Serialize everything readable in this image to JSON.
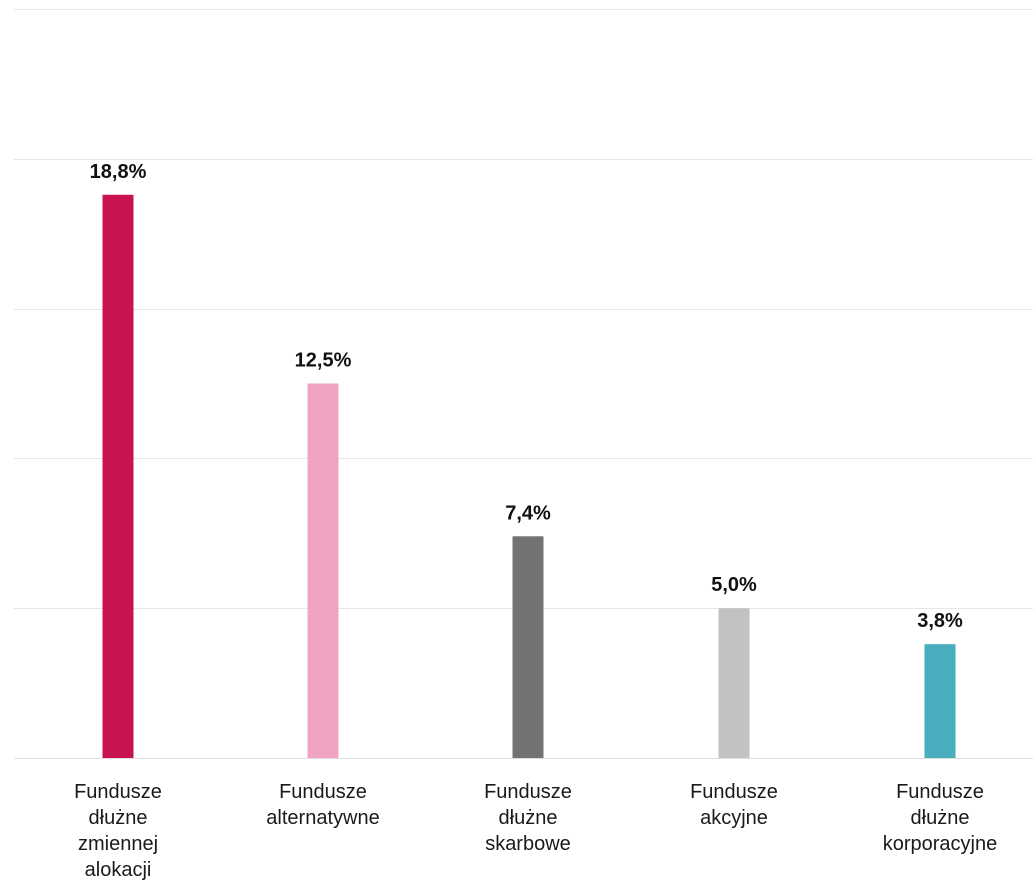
{
  "chart_data": {
    "type": "bar",
    "categories": [
      [
        "Fundusze",
        "dłużne",
        "zmiennej",
        "alokacji"
      ],
      [
        "Fundusze",
        "alternatywne"
      ],
      [
        "Fundusze",
        "dłużne",
        "skarbowe"
      ],
      [
        "Fundusze",
        "akcyjne"
      ],
      [
        "Fundusze",
        "dłużne",
        "korporacyjne"
      ]
    ],
    "values": [
      18.8,
      12.5,
      7.4,
      5.0,
      3.8
    ],
    "value_labels": [
      "18,8%",
      "12,5%",
      "7,4%",
      "5,0%",
      "3,8%"
    ],
    "colors": [
      "#c8134f",
      "#f0a3c3",
      "#737373",
      "#c2c2c2",
      "#48aebd"
    ],
    "ylim": [
      0,
      25
    ],
    "grid": true,
    "grid_step": 5
  }
}
